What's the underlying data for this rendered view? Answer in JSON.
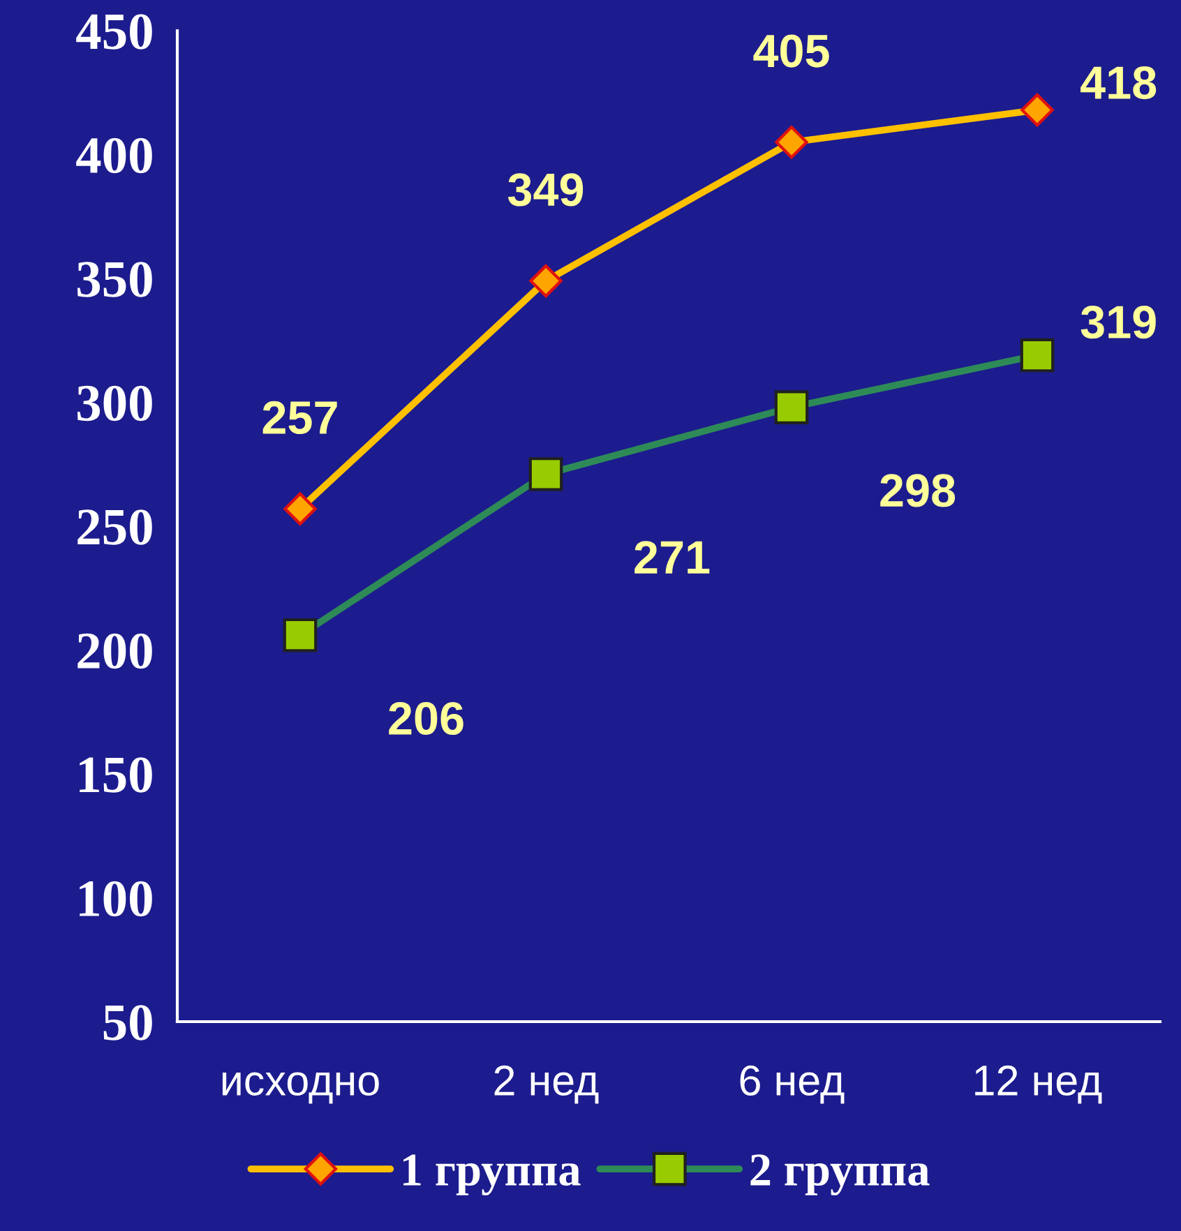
{
  "chart_data": {
    "type": "line",
    "categories": [
      "исходно",
      "2 нед",
      "6 нед",
      "12 нед"
    ],
    "series": [
      {
        "name": "1 группа",
        "color": "#ffc000",
        "marker": "diamond",
        "values": [
          257,
          349,
          405,
          418
        ]
      },
      {
        "name": "2 группа",
        "color": "#2e8b57",
        "marker": "square",
        "values": [
          206,
          271,
          298,
          319
        ]
      }
    ],
    "ylim": [
      50,
      450
    ],
    "yticks": [
      50,
      100,
      150,
      200,
      250,
      300,
      350,
      400,
      450
    ],
    "data_labels": true,
    "grid": false,
    "legend": "bottom"
  }
}
